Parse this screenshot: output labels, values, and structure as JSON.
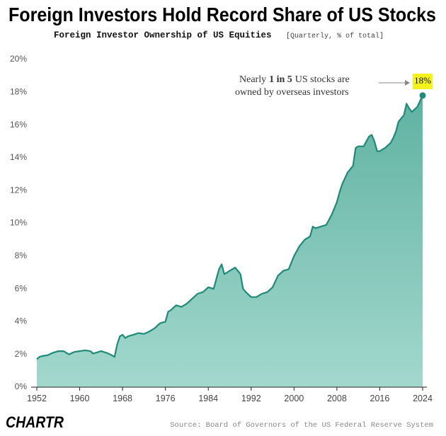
{
  "chart_data": {
    "type": "area",
    "title": "Foreign Investors Hold Record Share of  US Stocks",
    "subtitle": "Foreign Investor Ownership of US Equities",
    "subtitle_note": "[Quarterly, % of total]",
    "annotation": [
      "Nearly",
      "1 in 5",
      "US stocks are",
      "owned by overseas investors"
    ],
    "end_label": "18%",
    "source": "Source: Board of Governors of the US Federal Reserve System",
    "logo": "CHARTR",
    "color": "#1f8a78",
    "fill": "#7cc4b4",
    "x": [
      1952,
      1952.5,
      1953,
      1954,
      1955,
      1956,
      1957,
      1958,
      1959,
      1960,
      1961,
      1962,
      1962.5,
      1963,
      1964,
      1965,
      1966,
      1966.5,
      1967,
      1967.5,
      1968,
      1968.5,
      1969,
      1970,
      1971,
      1972,
      1973,
      1974,
      1975,
      1976,
      1976.5,
      1977,
      1978,
      1979,
      1980,
      1981,
      1982,
      1983,
      1984,
      1985,
      1985.5,
      1986,
      1986.5,
      1987,
      1988,
      1989,
      1989.5,
      1990,
      1990.5,
      1991,
      1992,
      1993,
      1994,
      1995,
      1996,
      1997,
      1998,
      1999,
      2000,
      2001,
      2002,
      2003,
      2003.5,
      2004,
      2005,
      2006,
      2007,
      2008,
      2008.5,
      2009,
      2010,
      2011,
      2011.5,
      2012,
      2013,
      2014,
      2014.5,
      2015,
      2015.5,
      2016,
      2017,
      2018,
      2018.5,
      2019,
      2019.5,
      2020,
      2020.5,
      2021,
      2021.5,
      2022,
      2023,
      2024
    ],
    "values": [
      1.7,
      1.85,
      1.9,
      1.95,
      2.1,
      2.2,
      2.2,
      2.0,
      2.15,
      2.2,
      2.25,
      2.2,
      2.05,
      2.1,
      2.2,
      2.1,
      1.95,
      1.85,
      2.6,
      3.1,
      3.2,
      3.0,
      3.1,
      3.2,
      3.3,
      3.25,
      3.4,
      3.6,
      3.9,
      4.0,
      4.6,
      4.7,
      5.0,
      4.9,
      5.1,
      5.4,
      5.7,
      5.8,
      6.1,
      6.0,
      6.6,
      7.2,
      7.5,
      6.9,
      7.1,
      7.3,
      7.1,
      6.9,
      6.0,
      5.8,
      5.5,
      5.5,
      5.7,
      5.8,
      6.1,
      6.8,
      7.1,
      7.2,
      8.0,
      8.6,
      9.0,
      9.2,
      9.8,
      9.7,
      9.8,
      9.9,
      10.5,
      11.3,
      11.9,
      12.4,
      13.1,
      13.5,
      14.6,
      14.7,
      14.7,
      15.3,
      15.4,
      15.0,
      14.4,
      14.4,
      14.6,
      14.9,
      15.2,
      15.6,
      16.2,
      16.4,
      16.6,
      17.3,
      17.0,
      16.8,
      17.1,
      17.8
    ],
    "xlim": [
      1952,
      2024
    ],
    "xticks": [
      1952,
      1960,
      1968,
      1976,
      1984,
      1992,
      2000,
      2008,
      2016,
      2024
    ],
    "ylim": [
      0,
      20
    ],
    "yticks": [
      {
        "value": 0,
        "label": "0%"
      },
      {
        "value": 2,
        "label": "2%"
      },
      {
        "value": 4,
        "label": "4%"
      },
      {
        "value": 6,
        "label": "6%"
      },
      {
        "value": 8,
        "label": "8%"
      },
      {
        "value": 10,
        "label": "10%"
      },
      {
        "value": 12,
        "label": "12%"
      },
      {
        "value": 14,
        "label": "14%"
      },
      {
        "value": 16,
        "label": "16%"
      },
      {
        "value": 18,
        "label": "18%"
      },
      {
        "value": 20,
        "label": "20%"
      }
    ]
  }
}
